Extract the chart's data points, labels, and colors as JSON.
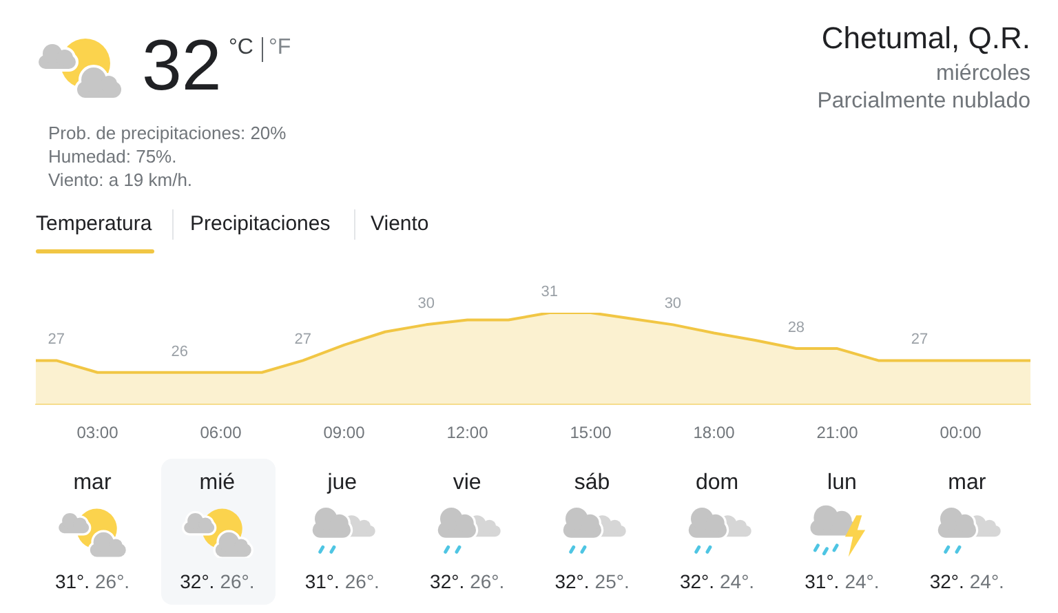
{
  "chart_data": {
    "type": "area",
    "title": "Chetumal, Q.R.",
    "x": [
      1.5,
      2,
      3,
      4,
      5,
      6,
      7,
      8,
      9,
      10,
      11,
      12,
      13,
      14,
      15,
      16,
      17,
      18,
      19,
      20,
      21,
      22,
      23,
      24,
      25,
      25.7
    ],
    "xlim": [
      1.5,
      25.7
    ],
    "xticks": [
      {
        "value": 3,
        "label": "03:00"
      },
      {
        "value": 6,
        "label": "06:00"
      },
      {
        "value": 9,
        "label": "09:00"
      },
      {
        "value": 12,
        "label": "12:00"
      },
      {
        "value": 15,
        "label": "15:00"
      },
      {
        "value": 18,
        "label": "18:00"
      },
      {
        "value": 21,
        "label": "21:00"
      },
      {
        "value": 24,
        "label": "00:00"
      }
    ],
    "series": [
      {
        "color": "#f1c644",
        "values": [
          27,
          27,
          26,
          26,
          26,
          26,
          26,
          27,
          28.3,
          29.4,
          30,
          30.4,
          30.4,
          31,
          31,
          30.5,
          30,
          29.3,
          28.7,
          28,
          28,
          27,
          27,
          27,
          27,
          27
        ],
        "value_labels": [
          null,
          "27",
          null,
          null,
          "26",
          null,
          null,
          "27",
          null,
          null,
          "30",
          null,
          null,
          "31",
          null,
          null,
          "30",
          null,
          null,
          "28",
          null,
          null,
          "27",
          null,
          null,
          null
        ]
      }
    ],
    "marker": "none",
    "annotations": [
      "32",
      "°C",
      "°F",
      "Prob. de precipitaciones: 20%",
      "Humedad: 75%.",
      "Viento: a 19 km/h.",
      "Temperatura",
      "Precipitaciones",
      "Viento",
      "miércoles",
      "Parcialmente nublado",
      "mar",
      "31°.",
      "26°.",
      "mié",
      "32°.",
      "26°.",
      "jue",
      "31°.",
      "26°.",
      "vie",
      "32°.",
      "26°.",
      "sáb",
      "32°.",
      "25°.",
      "dom",
      "32°.",
      "24°.",
      "lun",
      "31°.",
      "24°.",
      "mar",
      "32°.",
      "24°."
    ]
  }
}
